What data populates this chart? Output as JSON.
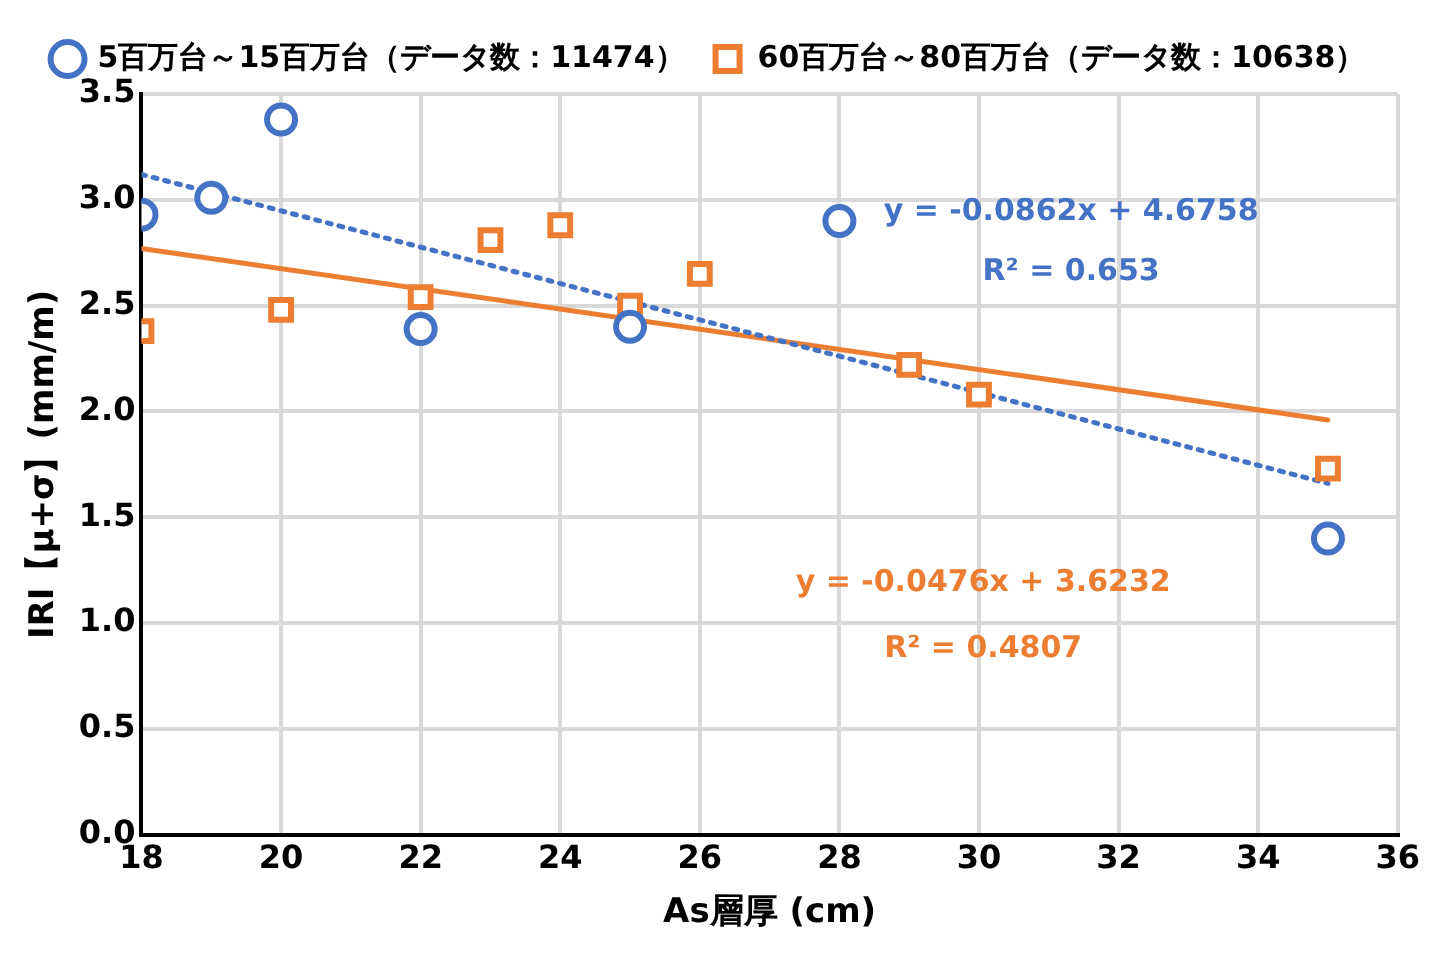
{
  "chart_data": {
    "type": "scatter",
    "xlabel": "As層厚 (cm)",
    "ylabel": "IRI【μ+σ】(mm/m)",
    "xlim": [
      18,
      36
    ],
    "xticks": [
      18,
      20,
      22,
      24,
      26,
      28,
      30,
      32,
      34,
      36
    ],
    "ylim": [
      0,
      3.5
    ],
    "yticks": [
      {
        "value": 0,
        "label": "0.0"
      },
      {
        "value": 0.5,
        "label": "0.5"
      },
      {
        "value": 1,
        "label": "1.0"
      },
      {
        "value": 1.5,
        "label": "1.5"
      },
      {
        "value": 2,
        "label": "2.0"
      },
      {
        "value": 2.5,
        "label": "2.5"
      },
      {
        "value": 3,
        "label": "3.0"
      },
      {
        "value": 3.5,
        "label": "3.5"
      }
    ],
    "grid": true,
    "legend": "top",
    "series": [
      {
        "name": "5百万台～15百万台（データ数：11474）",
        "color": "#4472c4",
        "marker": "circle",
        "x": [
          18,
          19,
          20,
          22,
          25,
          28,
          35
        ],
        "values": [
          2.93,
          3.01,
          3.38,
          2.39,
          2.4,
          2.9,
          1.4
        ]
      },
      {
        "name": "60百万台～80百万台（データ数：10638）",
        "color": "#ed7d31",
        "marker": "square",
        "x": [
          18,
          20,
          22,
          23,
          24,
          25,
          26,
          29,
          30,
          35
        ],
        "values": [
          2.38,
          2.48,
          2.54,
          2.81,
          2.88,
          2.5,
          2.65,
          2.22,
          2.08,
          1.73
        ]
      },
      {
        "type": "line",
        "color": "#4472c4",
        "line_style": "dotted",
        "marker": "none",
        "x": [
          18,
          35
        ],
        "values": [
          3.12,
          1.66
        ]
      },
      {
        "type": "line",
        "color": "#ed7d31",
        "line_style": "solid",
        "marker": "none",
        "x": [
          18,
          35
        ],
        "values": [
          2.77,
          1.96
        ]
      }
    ],
    "annotations": [
      "y = -0.0862x + 4.6758",
      "R² = 0.653",
      "y = -0.0476x + 3.6232",
      "R² = 0.4807"
    ]
  }
}
